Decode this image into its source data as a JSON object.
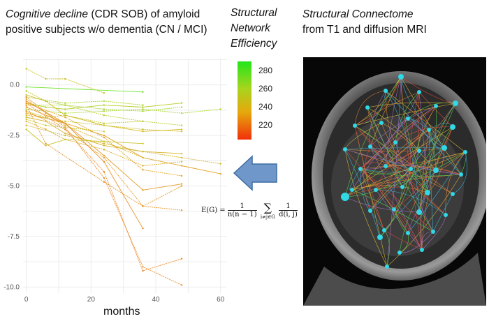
{
  "header": {
    "title_italic": "Cognitive decline",
    "title_rest": " (CDR SOB) of amyloid positive subjects w/o dementia (CN / MCI)",
    "legend_title": "Structural Network Efficiency",
    "right_title_italic": "Structural Connectome",
    "right_title_rest": "from T1 and diffusion MRI"
  },
  "colorbar": {
    "ticks": [
      "280",
      "260",
      "240",
      "220"
    ],
    "colors": {
      "high": "#22e61a",
      "mid": "#e6a80d",
      "low": "#f0300a"
    }
  },
  "formula": {
    "lhs": "E(G) =",
    "frac1_num": "1",
    "frac1_den": "n(n − 1)",
    "sum_symbol": "∑",
    "sum_sub": "i≠j∈G",
    "frac2_num": "1",
    "frac2_den": "d(i, j)"
  },
  "chart_data": {
    "type": "line",
    "xlabel": "months",
    "ylabel": "",
    "xlim": [
      -1,
      62
    ],
    "ylim": [
      -10.3,
      1.3
    ],
    "xticks": [
      "0",
      "20",
      "40",
      "60"
    ],
    "yticks": [
      "0.0",
      "-2.5",
      "-5.0",
      "-7.5",
      "-10.0"
    ],
    "grid": true,
    "series": [
      {
        "x": [
          0,
          36
        ],
        "values": [
          -0.1,
          -0.35
        ],
        "color": "#6ee42a"
      },
      {
        "x": [
          0,
          12,
          24,
          36
        ],
        "values": [
          -0.6,
          -0.9,
          -0.8,
          -1.0
        ],
        "color": "#a8d82a"
      },
      {
        "x": [
          0,
          6,
          12,
          24
        ],
        "values": [
          0.8,
          0.3,
          0.3,
          -0.4
        ],
        "color": "#c9c22a"
      },
      {
        "x": [
          0,
          6,
          12,
          24,
          36,
          48
        ],
        "values": [
          -0.9,
          -1.1,
          -1.2,
          -1.0,
          -1.1,
          -0.9
        ],
        "color": "#b6cf2a"
      },
      {
        "x": [
          0,
          12,
          24,
          36,
          48
        ],
        "values": [
          -1.0,
          -1.0,
          -1.2,
          -1.3,
          -1.1
        ],
        "color": "#9fd82a"
      },
      {
        "x": [
          0,
          12,
          24,
          36,
          48,
          60
        ],
        "values": [
          -1.2,
          -1.4,
          -1.3,
          -1.2,
          -1.4,
          -1.2
        ],
        "color": "#a9d62a"
      },
      {
        "x": [
          0,
          6,
          12,
          24,
          36,
          48
        ],
        "values": [
          -0.5,
          -0.8,
          -1.5,
          -2.0,
          -2.3,
          -2.2
        ],
        "color": "#d4ba2a"
      },
      {
        "x": [
          0,
          6,
          12,
          24,
          36
        ],
        "values": [
          -1.3,
          -1.6,
          -1.5,
          -1.9,
          -1.8
        ],
        "color": "#c0c82a"
      },
      {
        "x": [
          0,
          12,
          24,
          36,
          48
        ],
        "values": [
          -1.5,
          -1.8,
          -2.0,
          -2.2,
          -2.3
        ],
        "color": "#cfbf2a"
      },
      {
        "x": [
          0,
          6,
          12,
          24,
          36,
          48
        ],
        "values": [
          -1.6,
          -1.8,
          -2.4,
          -3.0,
          -3.3,
          -3.4
        ],
        "color": "#d8b22a"
      },
      {
        "x": [
          0,
          6,
          12,
          24,
          36,
          48
        ],
        "values": [
          -1.8,
          -2.2,
          -2.7,
          -3.2,
          -4.0,
          -3.8
        ],
        "color": "#dcac2a"
      },
      {
        "x": [
          0,
          12,
          24,
          36,
          48,
          60
        ],
        "values": [
          -2.0,
          -2.5,
          -2.9,
          -3.3,
          -3.6,
          -3.9
        ],
        "color": "#d3b62a"
      },
      {
        "x": [
          0,
          12,
          24,
          36,
          48,
          60
        ],
        "values": [
          -1.4,
          -1.9,
          -2.5,
          -3.6,
          -4.0,
          -4.4
        ],
        "color": "#e2a52a"
      },
      {
        "x": [
          0,
          6,
          12,
          24,
          36
        ],
        "values": [
          -0.7,
          -1.4,
          -2.0,
          -2.8,
          -3.6
        ],
        "color": "#d8b02a"
      },
      {
        "x": [
          0,
          12,
          24,
          36,
          48
        ],
        "values": [
          -0.9,
          -1.6,
          -2.6,
          -4.2,
          -4.5
        ],
        "color": "#e0a42a"
      },
      {
        "x": [
          0,
          12,
          24,
          36,
          48
        ],
        "values": [
          -1.1,
          -1.9,
          -3.5,
          -5.2,
          -4.9
        ],
        "color": "#e49e2a"
      },
      {
        "x": [
          0,
          12,
          24,
          36,
          48
        ],
        "values": [
          -1.3,
          -2.2,
          -3.6,
          -6.0,
          -5.0
        ],
        "color": "#e89a2a"
      },
      {
        "x": [
          0,
          6,
          24,
          36,
          48
        ],
        "values": [
          -1.0,
          -2.9,
          -4.8,
          -6.0,
          -6.2
        ],
        "color": "#e6962a"
      },
      {
        "x": [
          0,
          12,
          24,
          36
        ],
        "values": [
          -0.8,
          -1.9,
          -3.8,
          -7.1
        ],
        "color": "#ea912a"
      },
      {
        "x": [
          0,
          12,
          24,
          36,
          48
        ],
        "values": [
          -0.6,
          -2.1,
          -4.6,
          -9.0,
          -9.9
        ],
        "color": "#ec8c2a"
      },
      {
        "x": [
          0,
          12,
          24,
          36,
          48
        ],
        "values": [
          -0.9,
          -2.2,
          -4.3,
          -9.2,
          -8.6
        ],
        "color": "#ee8a2a"
      },
      {
        "x": [
          0,
          6,
          12,
          24,
          36
        ],
        "values": [
          -2.2,
          -3.0,
          -2.7,
          -2.8,
          -2.9
        ],
        "color": "#c8c42a"
      },
      {
        "x": [
          0,
          6,
          12,
          24,
          36,
          48
        ],
        "values": [
          -0.3,
          -0.8,
          -1.0,
          -1.5,
          -1.8,
          -2.0
        ],
        "color": "#b8cc2a"
      },
      {
        "x": [
          0,
          6,
          12,
          24
        ],
        "values": [
          -1.7,
          -2.0,
          -2.1,
          -2.3
        ],
        "color": "#c6c42a"
      }
    ]
  }
}
